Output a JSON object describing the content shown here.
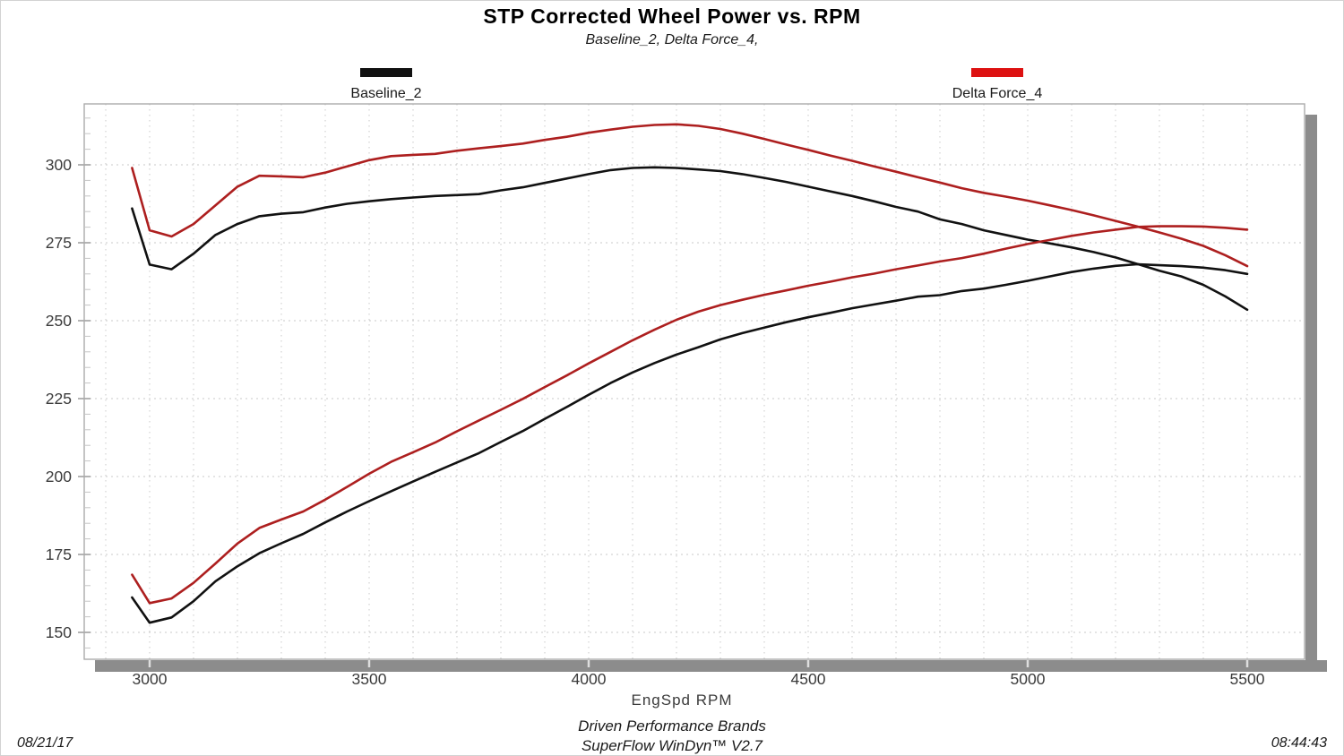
{
  "header": {
    "title": "STP Corrected Wheel Power vs. RPM",
    "subtitle": "Baseline_2, Delta Force_4,"
  },
  "legend": {
    "items": [
      {
        "label": "Baseline_2",
        "color": "#111111"
      },
      {
        "label": "Delta Force_4",
        "color": "#dd1111"
      }
    ]
  },
  "footer": {
    "company": "Driven Performance Brands",
    "software": "SuperFlow WinDyn™ V2.7",
    "date": "08/21/17",
    "time": "08:44:43"
  },
  "chart_data": {
    "type": "line",
    "title": "STP Corrected Wheel Power vs. RPM",
    "subtitle": "Baseline_2, Delta Force_4,",
    "xlabel": "EngSpd  RPM",
    "ylabel": "",
    "xlim": [
      2850,
      5630
    ],
    "ylim": [
      141,
      320
    ],
    "x_major_ticks": [
      3000,
      3500,
      4000,
      4500,
      5000,
      5500
    ],
    "y_major_ticks": [
      150,
      175,
      200,
      225,
      250,
      275,
      300
    ],
    "minor_x_grid_step_rpm": 100,
    "minor_y_tick_step": 5,
    "grid": "dotted",
    "legend_position": "top",
    "grid_color": "#c9c9c9",
    "axis_color": "#ababab",
    "shadow_color": "#8c8c8c",
    "tick_label_color": "#3b3b3b",
    "x": [
      2960,
      3000,
      3050,
      3100,
      3150,
      3200,
      3250,
      3300,
      3350,
      3400,
      3450,
      3500,
      3550,
      3600,
      3650,
      3700,
      3750,
      3800,
      3850,
      3900,
      3950,
      4000,
      4050,
      4100,
      4150,
      4200,
      4250,
      4300,
      4350,
      4400,
      4450,
      4500,
      4550,
      4600,
      4650,
      4700,
      4750,
      4800,
      4850,
      4900,
      4950,
      5000,
      5050,
      5100,
      5150,
      5200,
      5250,
      5300,
      5350,
      5400,
      5450,
      5500
    ],
    "series": [
      {
        "name": "Baseline_2 (upper curve)",
        "color": "#111111",
        "values": [
          286,
          268,
          266.5,
          271.5,
          277.5,
          281,
          283.5,
          284.3,
          284.8,
          286.3,
          287.5,
          288.3,
          289,
          289.5,
          290,
          290.3,
          290.6,
          291.8,
          292.8,
          294.2,
          295.6,
          297,
          298.3,
          299,
          299.2,
          299,
          298.5,
          298,
          297,
          295.8,
          294.5,
          293,
          291.5,
          290,
          288.3,
          286.5,
          285,
          282.5,
          281,
          279,
          277.5,
          276,
          274.8,
          273.5,
          272,
          270.3,
          268.2,
          266,
          264.2,
          261.5,
          257.8,
          253.5
        ]
      },
      {
        "name": "Delta Force_4 (upper curve)",
        "color": "#ad1f1f",
        "values": [
          299,
          279,
          277,
          281,
          287,
          293,
          296.5,
          296.3,
          296,
          297.5,
          299.5,
          301.5,
          302.8,
          303.2,
          303.5,
          304.5,
          305.3,
          306,
          306.8,
          308,
          309,
          310.3,
          311.3,
          312.2,
          312.8,
          313,
          312.5,
          311.5,
          310,
          308.3,
          306.5,
          304.8,
          303,
          301.3,
          299.5,
          297.8,
          296,
          294.3,
          292.5,
          291,
          289.8,
          288.5,
          287,
          285.5,
          283.8,
          282,
          280.2,
          278.3,
          276.3,
          274,
          271,
          267.5
        ]
      },
      {
        "name": "Baseline_2 (lower curve)",
        "color": "#111111",
        "values": [
          161.2,
          153.1,
          154.8,
          160,
          166.4,
          171.2,
          175.4,
          178.6,
          181.6,
          185.3,
          188.8,
          192.1,
          195.3,
          198.4,
          201.5,
          204.5,
          207.5,
          211.1,
          214.6,
          218.5,
          222.3,
          226.2,
          230,
          233.4,
          236.4,
          239.1,
          241.5,
          244,
          246,
          247.8,
          249.5,
          251.1,
          252.5,
          254,
          255.2,
          256.4,
          257.7,
          258.2,
          259.5,
          260.3,
          261.5,
          262.8,
          264.2,
          265.6,
          266.7,
          267.6,
          268.1,
          267.8,
          267.5,
          267,
          266.2,
          265
        ]
      },
      {
        "name": "Delta Force_4 (lower curve)",
        "color": "#ad1f1f",
        "values": [
          168.5,
          159.4,
          160.9,
          165.9,
          172.1,
          178.5,
          183.5,
          186.2,
          188.8,
          192.6,
          196.7,
          200.9,
          204.7,
          207.8,
          210.9,
          214.5,
          218,
          221.4,
          224.9,
          228.7,
          232.4,
          236.3,
          240,
          243.7,
          247.1,
          250.3,
          252.9,
          255,
          256.7,
          258.3,
          259.7,
          261.2,
          262.5,
          263.9,
          265.1,
          266.5,
          267.7,
          269,
          270.1,
          271.5,
          273.1,
          274.6,
          275.9,
          277.2,
          278.3,
          279.2,
          280.1,
          280.3,
          280.3,
          280.2,
          279.8,
          279.2
        ]
      }
    ]
  }
}
